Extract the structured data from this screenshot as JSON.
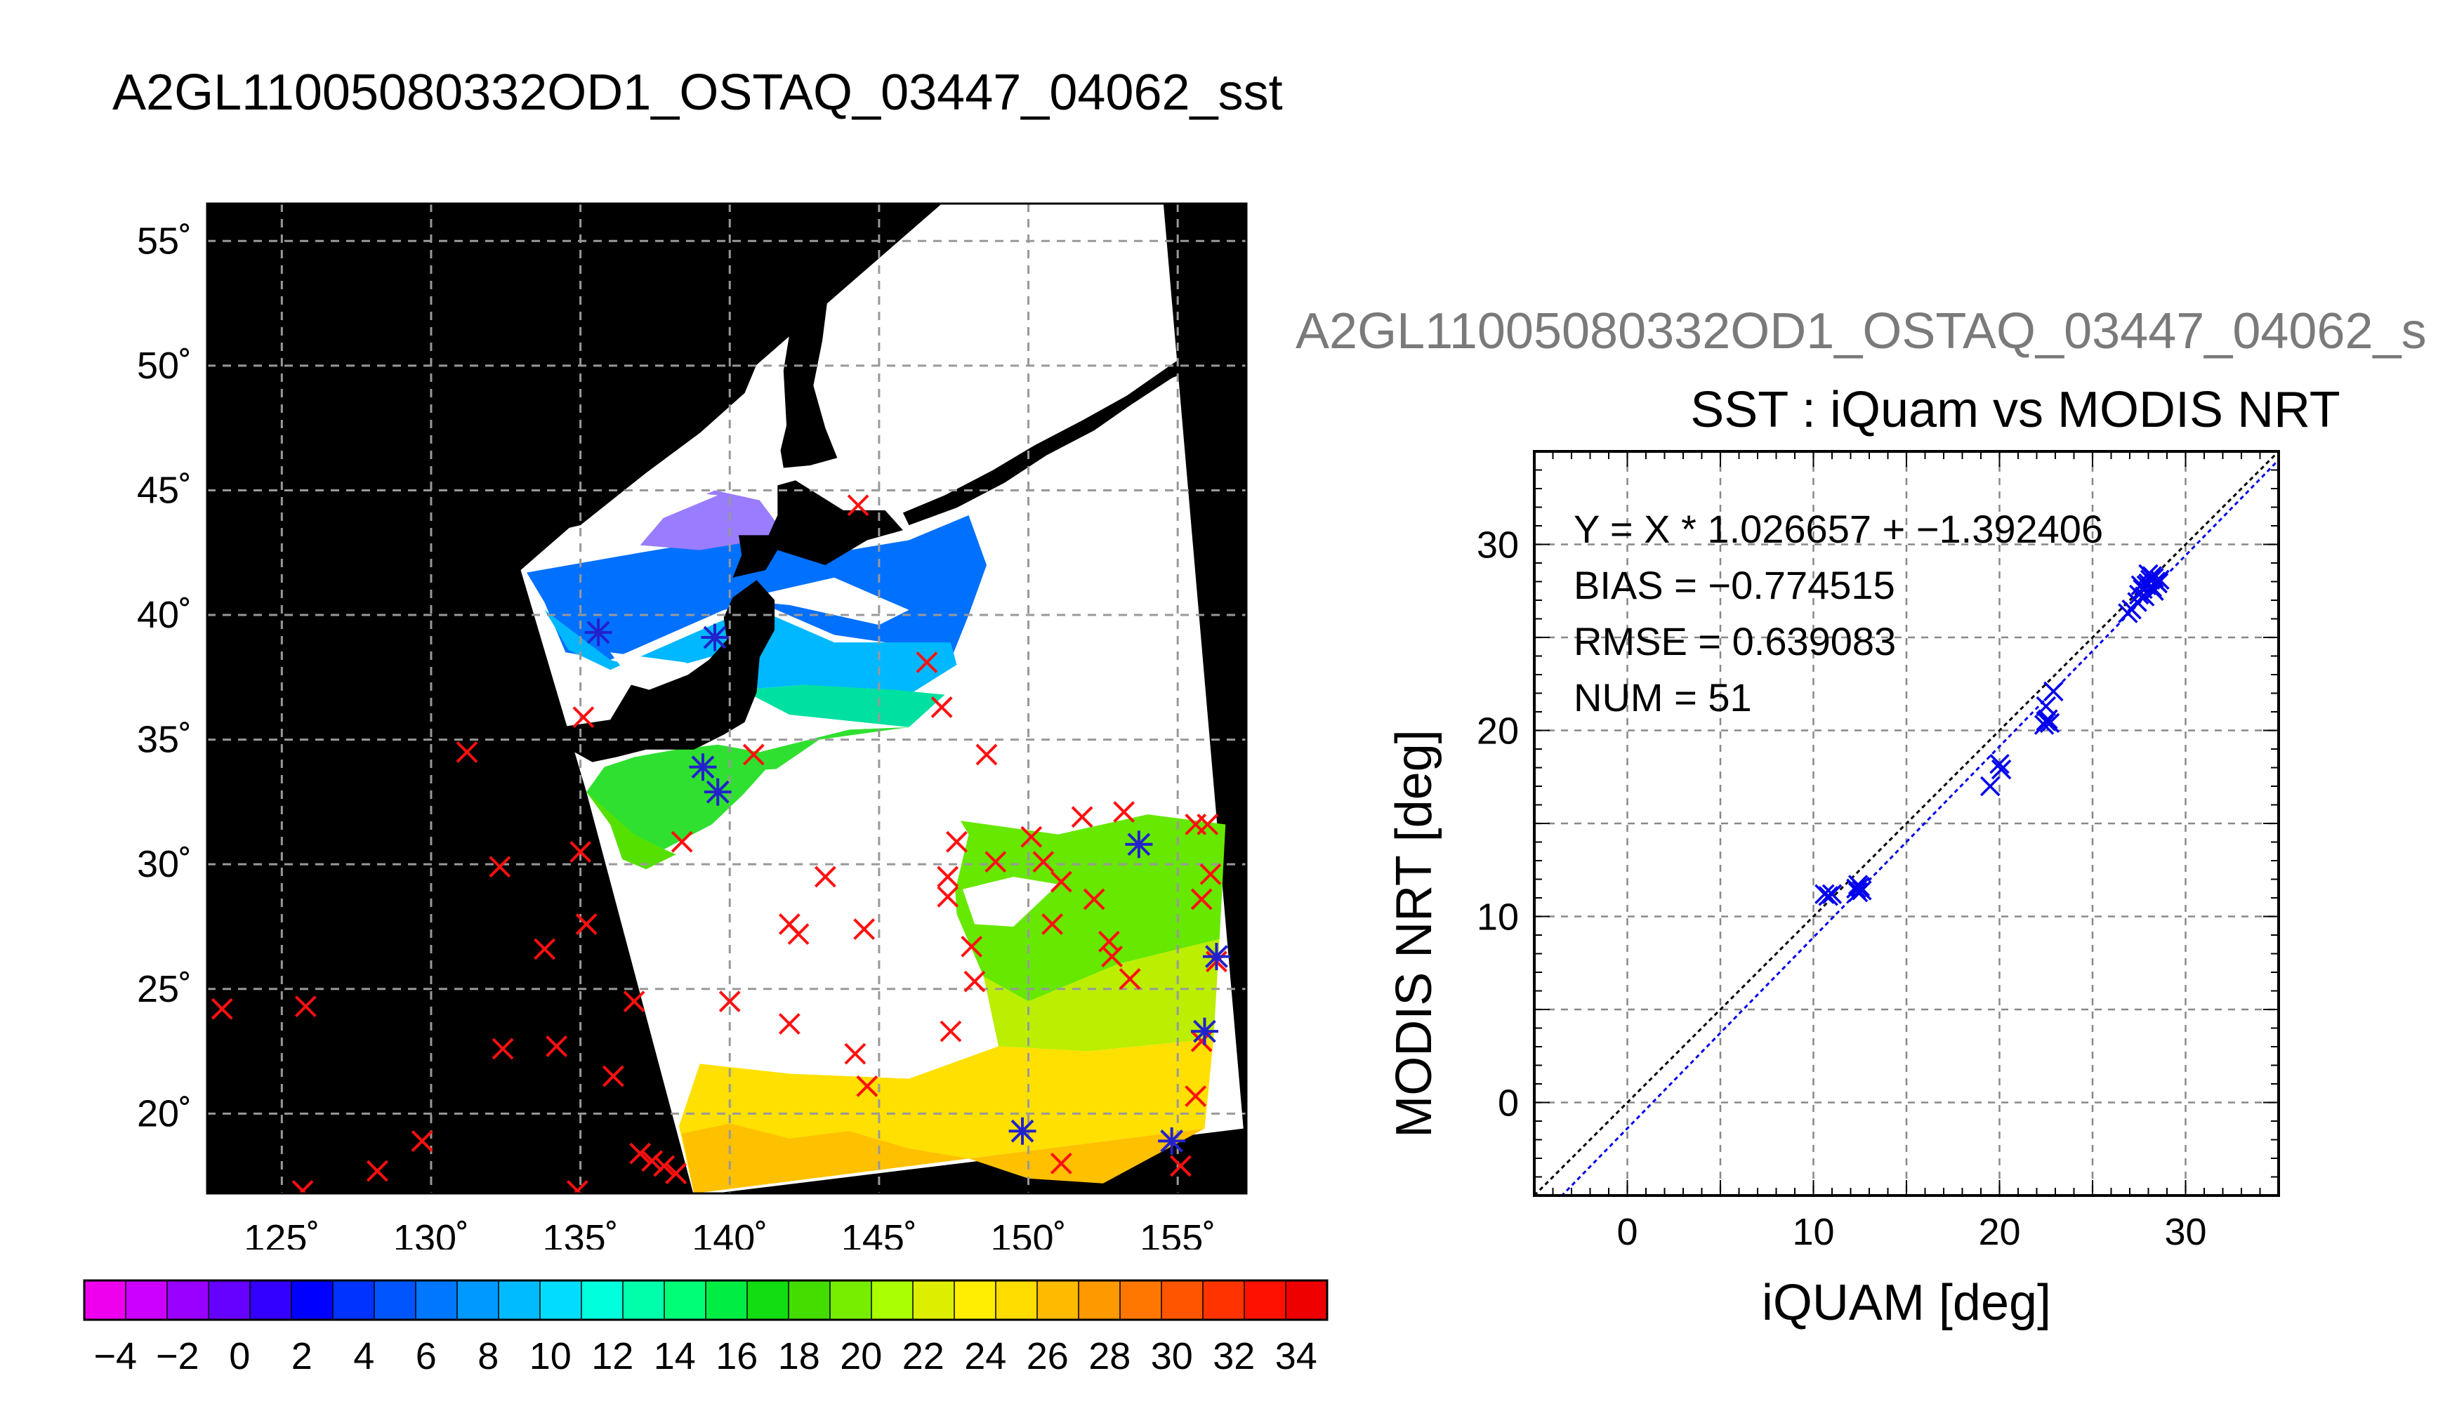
{
  "page_title": "A2GL11005080332OD1_OSTAQ_03447_04062_sst",
  "chart_data": [
    {
      "type": "heatmap",
      "title": "",
      "xlabel": "",
      "ylabel": "",
      "xlim": [
        122.5,
        157.3
      ],
      "ylim": [
        16.8,
        56.5
      ],
      "x_ticks": [
        125,
        130,
        135,
        140,
        145,
        150,
        155
      ],
      "y_ticks": [
        20,
        25,
        30,
        35,
        40,
        45,
        50,
        55
      ],
      "tick_suffix": "˚",
      "grid": true,
      "colorbar": {
        "range": [
          -5,
          35
        ],
        "tick_labels": [
          "−4",
          "−2",
          "0",
          "2",
          "4",
          "6",
          "8",
          "10",
          "12",
          "14",
          "16",
          "18",
          "20",
          "22",
          "24",
          "26",
          "28",
          "30",
          "32",
          "34"
        ],
        "tick_values": [
          -4,
          -2,
          0,
          2,
          4,
          6,
          8,
          10,
          12,
          14,
          16,
          18,
          20,
          22,
          24,
          26,
          28,
          30,
          32,
          34
        ],
        "colors": [
          "#ee00ee",
          "#cc00ff",
          "#9900ff",
          "#6600ff",
          "#3300ff",
          "#0000ff",
          "#0033ff",
          "#0055ff",
          "#0077ff",
          "#0099ff",
          "#00bbff",
          "#00ddff",
          "#00ffdd",
          "#00ffaa",
          "#00ff77",
          "#00ee44",
          "#11dd11",
          "#44dd00",
          "#77ee00",
          "#aaff00",
          "#ddee00",
          "#ffee00",
          "#ffdd00",
          "#ffbb00",
          "#ff9900",
          "#ff7700",
          "#ff5500",
          "#ff3300",
          "#ff1100",
          "#ee0000"
        ]
      },
      "red_markers": [
        [
          123,
          24.2
        ],
        [
          125.8,
          24.3
        ],
        [
          125.7,
          16.9
        ],
        [
          128.2,
          17.7
        ],
        [
          129.7,
          18.9
        ],
        [
          131.2,
          34.5
        ],
        [
          132.3,
          29.9
        ],
        [
          132.4,
          22.6
        ],
        [
          133.8,
          26.6
        ],
        [
          134.2,
          22.7
        ],
        [
          134.9,
          16.9
        ],
        [
          135.2,
          27.6
        ],
        [
          135,
          30.5
        ],
        [
          135.1,
          35.9
        ],
        [
          136.1,
          21.5
        ],
        [
          136.8,
          24.5
        ],
        [
          137,
          18.4
        ],
        [
          137.4,
          18.1
        ],
        [
          137.8,
          17.9
        ],
        [
          138.2,
          17.6
        ],
        [
          138.4,
          30.9
        ],
        [
          140.8,
          34.4
        ],
        [
          140,
          24.5
        ],
        [
          142,
          27.6
        ],
        [
          142.3,
          27.2
        ],
        [
          142,
          23.6
        ],
        [
          143.2,
          29.5
        ],
        [
          144.5,
          27.4
        ],
        [
          144.2,
          22.4
        ],
        [
          144.6,
          21.1
        ],
        [
          144.3,
          44.4
        ],
        [
          146.6,
          38.1
        ],
        [
          147.1,
          36.3
        ],
        [
          147.3,
          28.7
        ],
        [
          147.6,
          30.9
        ],
        [
          147.3,
          29.5
        ],
        [
          148.1,
          26.7
        ],
        [
          148.2,
          25.3
        ],
        [
          148.6,
          34.4
        ],
        [
          147.4,
          23.3
        ],
        [
          148.9,
          30.1
        ],
        [
          150.1,
          31.1
        ],
        [
          150.5,
          30.1
        ],
        [
          151.1,
          29.3
        ],
        [
          150.8,
          27.6
        ],
        [
          151.8,
          31.9
        ],
        [
          152.2,
          28.6
        ],
        [
          152.7,
          26.9
        ],
        [
          153.2,
          32.1
        ],
        [
          152.8,
          26.3
        ],
        [
          153.4,
          25.4
        ],
        [
          155.1,
          17.9
        ],
        [
          155.6,
          31.6
        ],
        [
          156,
          31.6
        ],
        [
          155.8,
          28.6
        ],
        [
          156.1,
          29.6
        ],
        [
          156.3,
          26.1
        ],
        [
          155.6,
          20.7
        ],
        [
          155.8,
          22.9
        ],
        [
          151.1,
          18
        ]
      ],
      "blue_markers": [
        [
          135.6,
          39.3
        ],
        [
          139.5,
          39.1
        ],
        [
          139.1,
          33.9
        ],
        [
          139.6,
          32.9
        ],
        [
          153.7,
          30.8
        ],
        [
          155.9,
          23.3
        ],
        [
          149.8,
          19.3
        ],
        [
          154.8,
          18.9
        ],
        [
          156.3,
          26.3
        ]
      ],
      "swath_polygon": [
        [
          133.0,
          41.8
        ],
        [
          147.2,
          56.6
        ],
        [
          154.5,
          56.8
        ],
        [
          157.2,
          19.4
        ],
        [
          138.8,
          16.7
        ],
        [
          135.2,
          32.9
        ],
        [
          133.0,
          41.8
        ]
      ]
    },
    {
      "type": "scatter",
      "subtitle": "A2GL11005080332OD1_OSTAQ_03447_04062_s",
      "title": "SST : iQuam vs MODIS NRT",
      "xlabel": "iQUAM [deg]",
      "ylabel": "MODIS NRT [deg]",
      "xlim": [
        -5,
        35
      ],
      "ylim": [
        -5,
        35
      ],
      "x_ticks": [
        0,
        10,
        20,
        30
      ],
      "y_ticks": [
        0,
        10,
        20,
        30
      ],
      "grid": true,
      "annotations": [
        "Y = X * 1.026657 + −1.392406",
        "BIAS = −0.774515",
        "RMSE = 0.639083",
        "NUM = 51"
      ],
      "fit": {
        "slope": 1.026657,
        "intercept": -1.392406
      },
      "points": [
        [
          10.6,
          11.2
        ],
        [
          10.8,
          11.1
        ],
        [
          11.0,
          11.2
        ],
        [
          12.3,
          11.5
        ],
        [
          12.4,
          11.7
        ],
        [
          12.5,
          11.6
        ],
        [
          12.6,
          11.4
        ],
        [
          12.4,
          11.3
        ],
        [
          19.5,
          17.0
        ],
        [
          20.0,
          18.2
        ],
        [
          20.1,
          17.9
        ],
        [
          22.5,
          20.5
        ],
        [
          22.4,
          20.3
        ],
        [
          22.6,
          20.6
        ],
        [
          22.7,
          20.4
        ],
        [
          22.5,
          21.3
        ],
        [
          22.9,
          22.1
        ],
        [
          26.9,
          26.3
        ],
        [
          27.1,
          26.5
        ],
        [
          27.4,
          26.9
        ],
        [
          27.5,
          27.3
        ],
        [
          27.7,
          27.6
        ],
        [
          27.9,
          27.8
        ],
        [
          28.0,
          27.9
        ],
        [
          28.1,
          28.1
        ],
        [
          28.2,
          27.7
        ],
        [
          28.3,
          27.5
        ],
        [
          28.3,
          28.2
        ],
        [
          28.4,
          28.0
        ],
        [
          28.5,
          27.9
        ],
        [
          28.6,
          28.1
        ],
        [
          28.2,
          28.3
        ],
        [
          27.8,
          27.2
        ],
        [
          27.6,
          27.8
        ],
        [
          28.0,
          28.4
        ]
      ],
      "colors": {
        "points": "#0000ee",
        "fit_line": "#0000ee",
        "identity_line": "#000000"
      }
    }
  ]
}
